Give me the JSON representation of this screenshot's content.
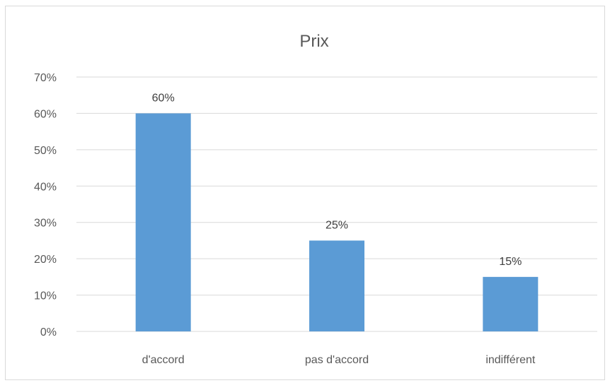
{
  "chart_data": {
    "type": "bar",
    "title": "Prix",
    "categories": [
      "d'accord",
      "pas d'accord",
      "indifférent"
    ],
    "values": [
      60,
      25,
      15
    ],
    "data_labels": [
      "60%",
      "25%",
      "15%"
    ],
    "y_ticks": [
      "0%",
      "10%",
      "20%",
      "30%",
      "40%",
      "50%",
      "60%",
      "70%"
    ],
    "ylim": [
      0,
      70
    ],
    "y_step": 10,
    "grid": true,
    "legend": "none",
    "bar_color": "#5b9bd5",
    "grid_color": "#d9d9d9"
  }
}
